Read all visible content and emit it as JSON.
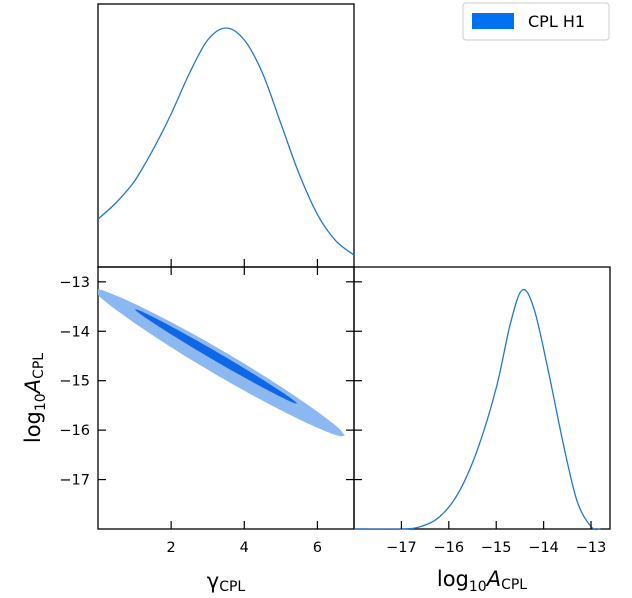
{
  "chart_data": {
    "type": "corner-plot",
    "legend": {
      "label": "CPL H1",
      "color": "#0072f0",
      "placement": "top-right"
    },
    "colors": {
      "inner_contour": "#0f66e6",
      "outer_contour": "#8cb8f2",
      "line": "#1f77d4"
    },
    "panels": [
      {
        "name": "gamma-marginal",
        "type": "line",
        "xlim": [
          0,
          7
        ],
        "x": [
          0,
          0.5,
          1.0,
          1.5,
          2.0,
          2.5,
          3.0,
          3.5,
          4.0,
          4.5,
          5.0,
          5.5,
          6.0,
          6.5,
          7.0
        ],
        "y": [
          0.2,
          0.27,
          0.36,
          0.49,
          0.64,
          0.81,
          0.95,
          1.0,
          0.95,
          0.81,
          0.6,
          0.39,
          0.22,
          0.11,
          0.05
        ]
      },
      {
        "name": "logA-vs-gamma",
        "type": "contour",
        "xlim": [
          0,
          7
        ],
        "ylim": [
          -18.0,
          -12.7
        ],
        "xticks": [
          "2",
          "4",
          "6"
        ],
        "xtick_values": [
          2,
          4,
          6
        ],
        "yticks": [
          "−13",
          "−14",
          "−15",
          "−16",
          "−17"
        ],
        "ytick_values": [
          -13,
          -14,
          -15,
          -16,
          -17
        ],
        "xlabel": "γCPL",
        "ylabel": "log10ACPL",
        "contours": [
          {
            "level": "95%",
            "center": [
              3.35,
              -14.65
            ],
            "x_from": -0.1,
            "x_to": 6.75,
            "width": 0.56,
            "slope": -0.43
          },
          {
            "level": "68%",
            "center": [
              3.25,
              -14.52
            ],
            "x_from": 1.0,
            "x_to": 5.45,
            "width": 0.2,
            "slope": -0.43
          }
        ]
      },
      {
        "name": "logA-marginal",
        "type": "line",
        "xlim": [
          -18.0,
          -12.6
        ],
        "xticks": [
          "−17",
          "−16",
          "−15",
          "−14",
          "−13"
        ],
        "xtick_values": [
          -17,
          -16,
          -15,
          -14,
          -13
        ],
        "xlabel": "log10ACPL",
        "x": [
          -18.0,
          -17.0,
          -16.6,
          -16.2,
          -15.8,
          -15.4,
          -15.0,
          -14.7,
          -14.45,
          -14.2,
          -13.9,
          -13.6,
          -13.3,
          -13.0,
          -12.8
        ],
        "y": [
          0.0,
          0.0,
          0.01,
          0.05,
          0.15,
          0.33,
          0.59,
          0.86,
          1.0,
          0.92,
          0.66,
          0.37,
          0.12,
          0.01,
          0.0
        ]
      }
    ]
  }
}
